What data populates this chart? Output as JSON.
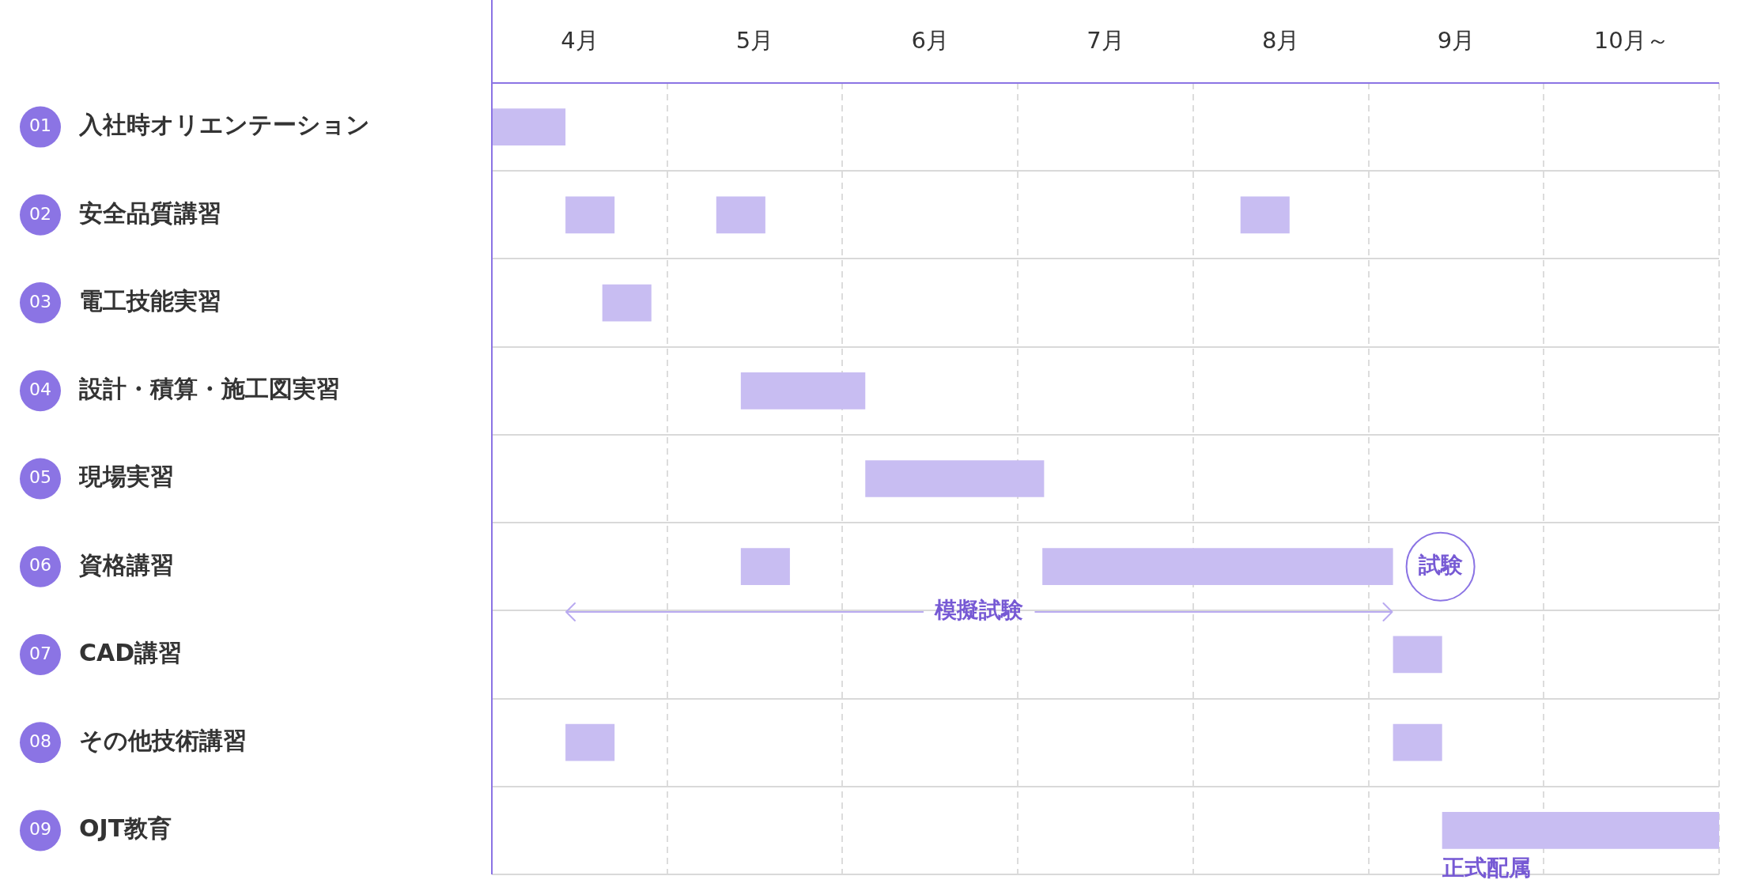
{
  "chart_data": {
    "type": "bar",
    "orientation": "horizontal",
    "categories": [
      "入社時オリエンテーション",
      "安全品質講習",
      "電工技能実習",
      "設計・積算・施工図実習",
      "現場実習",
      "資格講習",
      "CAD講習",
      "その他技術講習",
      "OJT教育"
    ],
    "series": [
      {
        "color": "#c8bdf2",
        "base": [
          4,
          4.42,
          4.63,
          5.42,
          6.13,
          5.42,
          9.14,
          4.42,
          9.42
        ],
        "values": [
          0.42,
          0.28,
          0.28,
          0.71,
          1.02,
          0.28,
          0.28,
          0.28,
          1.58
        ]
      },
      {
        "color": "#c8bdf2",
        "base": [
          null,
          5.28,
          null,
          null,
          null,
          7.14,
          null,
          9.14,
          null
        ],
        "values": [
          null,
          0.28,
          null,
          null,
          null,
          2.0,
          null,
          0.28,
          null
        ]
      },
      {
        "color": "#c8bdf2",
        "base": [
          null,
          8.27,
          null,
          null,
          null,
          null,
          null,
          null,
          null
        ],
        "values": [
          null,
          0.28,
          null,
          null,
          null,
          null,
          null,
          null,
          null
        ]
      }
    ],
    "xlim": [
      4,
      11
    ],
    "xticks": [
      {
        "value": 4,
        "label": null
      },
      {
        "value": 4.5,
        "label": "4月"
      },
      {
        "value": 5,
        "label": null
      },
      {
        "value": 5.5,
        "label": "5月"
      },
      {
        "value": 6,
        "label": null
      },
      {
        "value": 6.5,
        "label": "6月"
      },
      {
        "value": 7,
        "label": null
      },
      {
        "value": 7.5,
        "label": "7月"
      },
      {
        "value": 8,
        "label": null
      },
      {
        "value": 8.5,
        "label": "8月"
      },
      {
        "value": 9,
        "label": null
      },
      {
        "value": 9.5,
        "label": "9月"
      },
      {
        "value": 10,
        "label": null
      },
      {
        "value": 10.5,
        "label": "10月～"
      },
      {
        "value": 11,
        "label": null
      }
    ],
    "grid": true,
    "annotations": [
      "01",
      "02",
      "03",
      "04",
      "05",
      "06",
      "07",
      "08",
      "09",
      {
        "text": "試験",
        "x": 9.14,
        "y": "資格講習"
      },
      "模擬試験",
      {
        "text": "正式配属",
        "x": 9.42,
        "y": "OJT教育"
      }
    ]
  }
}
